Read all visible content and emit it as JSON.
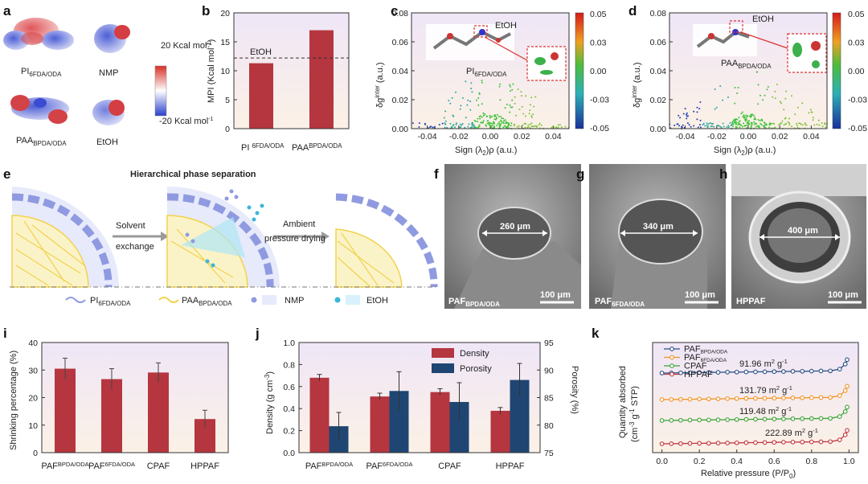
{
  "colors": {
    "red": "#b5363f",
    "navy": "#1f4672",
    "blue_curve": "#2b4f84",
    "orange": "#f39322",
    "green": "#3ba234",
    "maroon": "#c0363f",
    "lavender": "#9da6e0",
    "yellow": "#f3d03a",
    "cyan": "#3bb6d8"
  },
  "panel_letters": {
    "a": "a",
    "b": "b",
    "c": "c",
    "d": "d",
    "e": "e",
    "f": "f",
    "g": "g",
    "h": "h",
    "i": "i",
    "j": "j",
    "k": "k"
  },
  "panel_a": {
    "molecules": [
      {
        "name": "PI",
        "sub": "6FDA/ODA"
      },
      {
        "name": "NMP",
        "sub": ""
      },
      {
        "name": "PAA",
        "sub": "BPDA/ODA"
      },
      {
        "name": "EtOH",
        "sub": ""
      }
    ],
    "scale_top": "20 Kcal mol",
    "scale_bottom": "-20 Kcal mol",
    "sup": "-1"
  },
  "chart_data": [
    {
      "panel": "b",
      "type": "bar",
      "title": "",
      "ylabel": "MPI (Kcal mol",
      "ylabel_sup": "-1",
      "ylabel_end": ")",
      "ylim": [
        0,
        20
      ],
      "yticks": [
        "0",
        "5",
        "10",
        "15",
        "20"
      ],
      "categories": [
        {
          "main": "PI ",
          "sub": "6FDA/ODA"
        },
        {
          "main": "PAA",
          "sub": "BPDA/ODA"
        }
      ],
      "values": [
        11.3,
        17.0
      ],
      "reference_line": {
        "value": 12.2,
        "label": "EtOH"
      }
    },
    {
      "panel": "c",
      "type": "scatter",
      "xlabel": "Sign (λ",
      "xlabel_sub": "2",
      "xlabel_end": ")ρ (a.u.)",
      "ylabel": "δg",
      "ylabel_sup": "inter",
      "ylabel_end": " (a.u.)",
      "xlim": [
        -0.05,
        0.05
      ],
      "ylim": [
        0,
        0.08
      ],
      "xticks": [
        "-0.04",
        "-0.02",
        "0.00",
        "0.02",
        "0.04"
      ],
      "yticks": [
        "0.00",
        "0.02",
        "0.04",
        "0.06",
        "0.08"
      ],
      "colorbar": [
        "0.05",
        "0.03",
        "0.00",
        "-0.03",
        "-0.05"
      ],
      "labels": {
        "solvent": "EtOH",
        "molecule": "PI",
        "molecule_sub": "6FDA/ODA"
      }
    },
    {
      "panel": "d",
      "type": "scatter",
      "xlabel": "Sign (λ",
      "xlabel_sub": "2",
      "xlabel_end": ")ρ (a.u.)",
      "ylabel": "δg",
      "ylabel_sup": "inter",
      "ylabel_end": " (a.u.)",
      "xlim": [
        -0.05,
        0.05
      ],
      "ylim": [
        0,
        0.08
      ],
      "xticks": [
        "-0.04",
        "-0.02",
        "0.00",
        "0.02",
        "0.04"
      ],
      "yticks": [
        "0.00",
        "0.02",
        "0.04",
        "0.06",
        "0.08"
      ],
      "colorbar": [
        "0.05",
        "0.03",
        "0.00",
        "-0.03",
        "-0.05"
      ],
      "labels": {
        "solvent": "EtOH",
        "molecule": "PAA",
        "molecule_sub": "BPDA/ODA"
      }
    },
    {
      "panel": "i",
      "type": "bar",
      "ylabel": "Shrinking percentage (%)",
      "ylim": [
        0,
        40
      ],
      "yticks": [
        "0",
        "10",
        "20",
        "30",
        "40"
      ],
      "categories": [
        {
          "main": "PAF",
          "sub": "BPDA/ODA"
        },
        {
          "main": "PAF",
          "sub": "6FDA/ODA"
        },
        {
          "main": "CPAF",
          "sub": ""
        },
        {
          "main": "HPPAF",
          "sub": ""
        }
      ],
      "values": [
        30.5,
        26.7,
        29.1,
        12.2
      ],
      "errors": [
        3.8,
        3.8,
        3.5,
        3.2
      ]
    },
    {
      "panel": "j",
      "type": "bar",
      "ylabel": "Density (g cm",
      "ylabel_sup": "-3",
      "ylabel_end": ")",
      "y2label": "Porosity (%)",
      "ylim": [
        0,
        1.0
      ],
      "y2lim": [
        75,
        95
      ],
      "yticks": [
        "0.0",
        "0.2",
        "0.4",
        "0.6",
        "0.8",
        "1.0"
      ],
      "y2ticks": [
        "75",
        "80",
        "85",
        "90",
        "95"
      ],
      "categories": [
        {
          "main": "PAF",
          "sub": "BPDA/ODA"
        },
        {
          "main": "PAF",
          "sub": "6FDA/ODA"
        },
        {
          "main": "CPAF",
          "sub": ""
        },
        {
          "main": "HPPAF",
          "sub": ""
        }
      ],
      "series": [
        {
          "name": "Density",
          "values": [
            0.68,
            0.51,
            0.55,
            0.38
          ],
          "errors": [
            0.03,
            0.03,
            0.03,
            0.03
          ]
        },
        {
          "name": "Porosity",
          "values": [
            79.8,
            86.2,
            84.2,
            88.2
          ],
          "errors": [
            2.5,
            3.5,
            3.5,
            3.0
          ]
        }
      ]
    },
    {
      "panel": "k",
      "type": "line",
      "xlabel": "Relative pressure (P/P",
      "xlabel_sub": "0",
      "xlabel_end": ")",
      "ylabel1": "Quantity absorbed",
      "ylabel2": "(cm",
      "ylabel2_sup": "-3",
      "ylabel2_end": " g",
      "ylabel2_sup2": "-1",
      "ylabel2_end2": " STP)",
      "xlim": [
        -0.05,
        1.05
      ],
      "xticks": [
        "0.0",
        "0.2",
        "0.4",
        "0.6",
        "0.8",
        "1.0"
      ],
      "series": [
        {
          "name": "PAF",
          "sub": "BPDA/ODA",
          "bet": "91.96 m",
          "unit": " g",
          "unit_sup": "-1",
          "area_sup": "2"
        },
        {
          "name": "PAF",
          "sub": "6FDA/ODA",
          "bet": "131.79 m",
          "unit": " g",
          "unit_sup": "-1",
          "area_sup": "2"
        },
        {
          "name": "CPAF",
          "sub": "",
          "bet": "119.48 m",
          "unit": " g",
          "unit_sup": "-1",
          "area_sup": "2"
        },
        {
          "name": "HPPAF",
          "sub": "",
          "bet": "222.89 m",
          "unit": " g",
          "unit_sup": "-1",
          "area_sup": "2"
        }
      ]
    }
  ],
  "panel_e": {
    "title": "Hierarchical phase separation",
    "arrow1_line1": "Solvent",
    "arrow1_line2": "exchange",
    "arrow2_line1": "Ambient",
    "arrow2_line2": "pressure drying",
    "legend": [
      {
        "name": "PI",
        "sub": "6FDA/ODA"
      },
      {
        "name": "PAA",
        "sub": "BPDA/ODA"
      },
      {
        "name": "NMP",
        "sub": ""
      },
      {
        "name": "EtOH",
        "sub": ""
      }
    ]
  },
  "panel_f": {
    "diameter": "260 μm",
    "scale": "100 μm",
    "sample": "PAF",
    "sample_sub": "BPDA/ODA"
  },
  "panel_g": {
    "diameter": "340 μm",
    "scale": "100 μm",
    "sample": "PAF",
    "sample_sub": "6FDA/ODA"
  },
  "panel_h": {
    "diameter": "400 μm",
    "scale": "100 μm",
    "sample": "HPPAF"
  }
}
